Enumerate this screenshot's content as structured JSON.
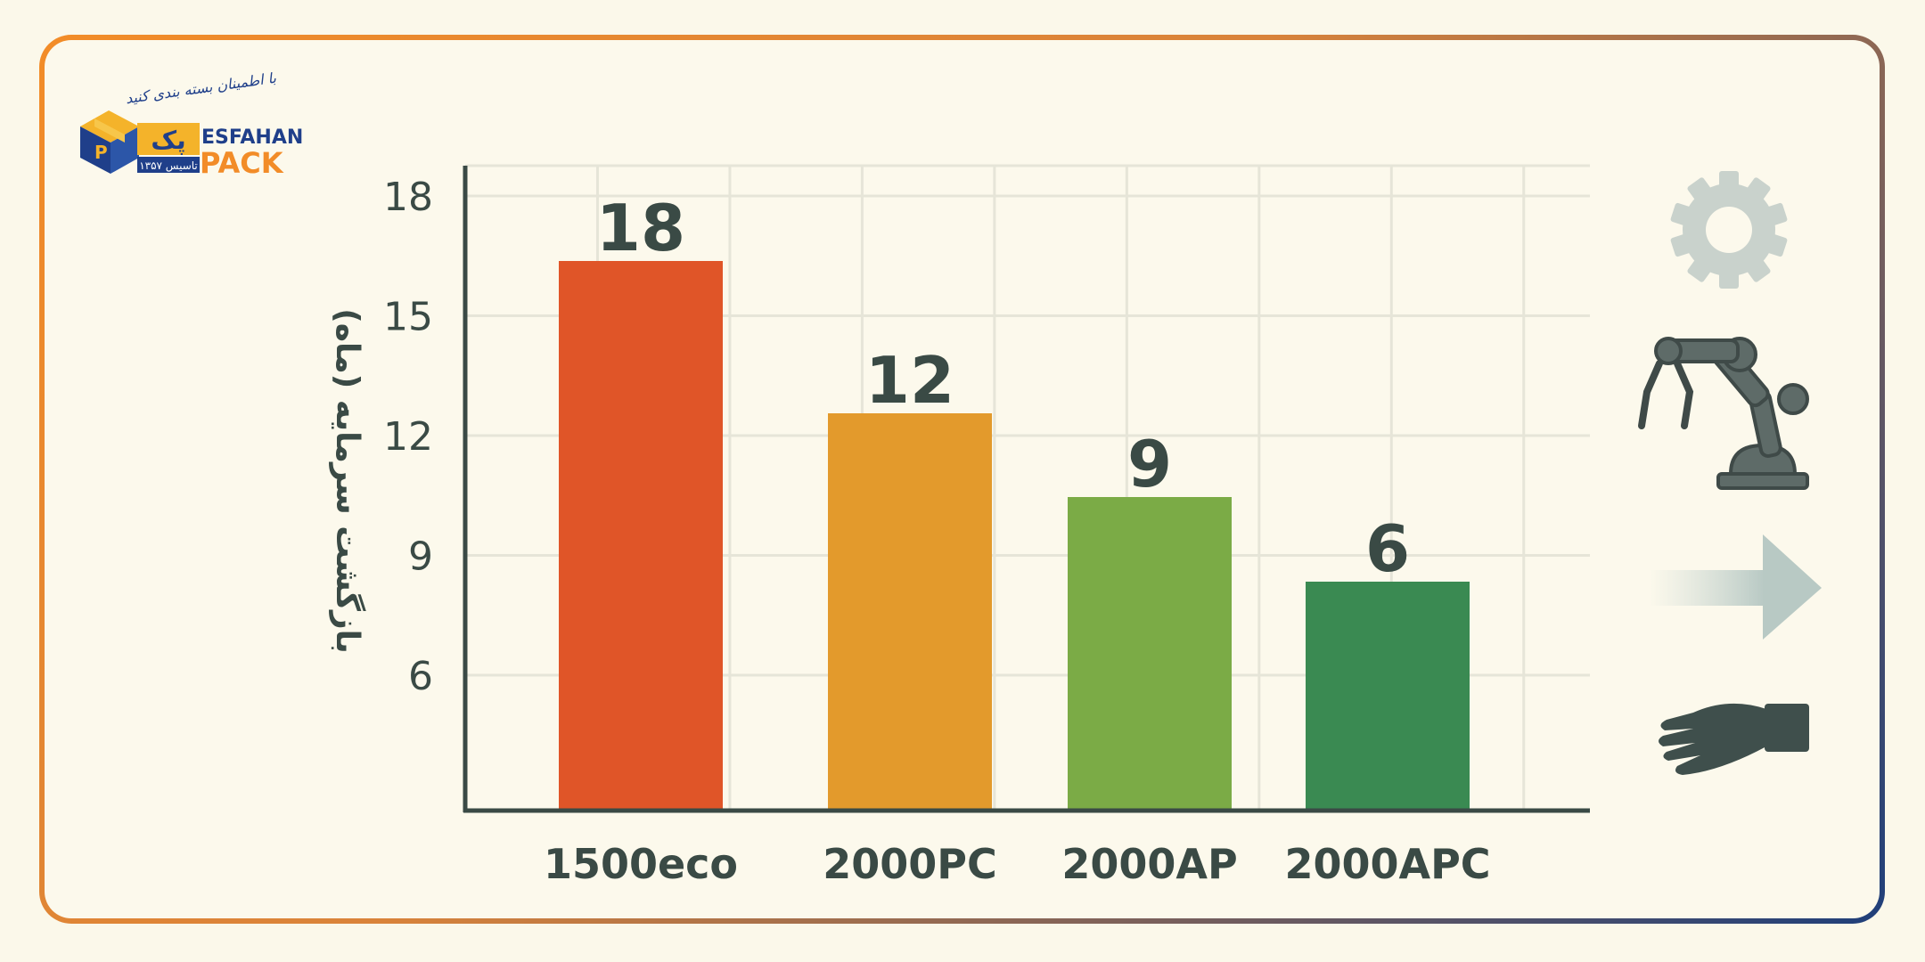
{
  "logo": {
    "name_top": "ESFAHAN",
    "name_bottom": "PACK",
    "name_fa": "پک",
    "established": "تاسیس ۱۳۵۷",
    "slogan": "با اطمینان بسته بندی کنید"
  },
  "colors": {
    "axis": "#3a4a45",
    "grid": "#e6e5d8",
    "text": "#3a4a45"
  },
  "chart_data": {
    "type": "bar",
    "categories": [
      "1500eco",
      "2000PC",
      "2000AP",
      "2000APC"
    ],
    "values": [
      18,
      12,
      9,
      6
    ],
    "value_labels": [
      "18",
      "12",
      "9",
      "6"
    ],
    "colors": [
      "#e05528",
      "#e39a2c",
      "#7bab46",
      "#3a8a52"
    ],
    "ylabel": "بازگشت سرمایه (ماه)",
    "y_ticks": [
      6,
      9,
      12,
      15,
      18
    ],
    "grid": true,
    "legend": "none"
  },
  "icons": [
    "gear-icon",
    "robot-arm-icon",
    "arrow-right-icon",
    "hand-icon"
  ]
}
